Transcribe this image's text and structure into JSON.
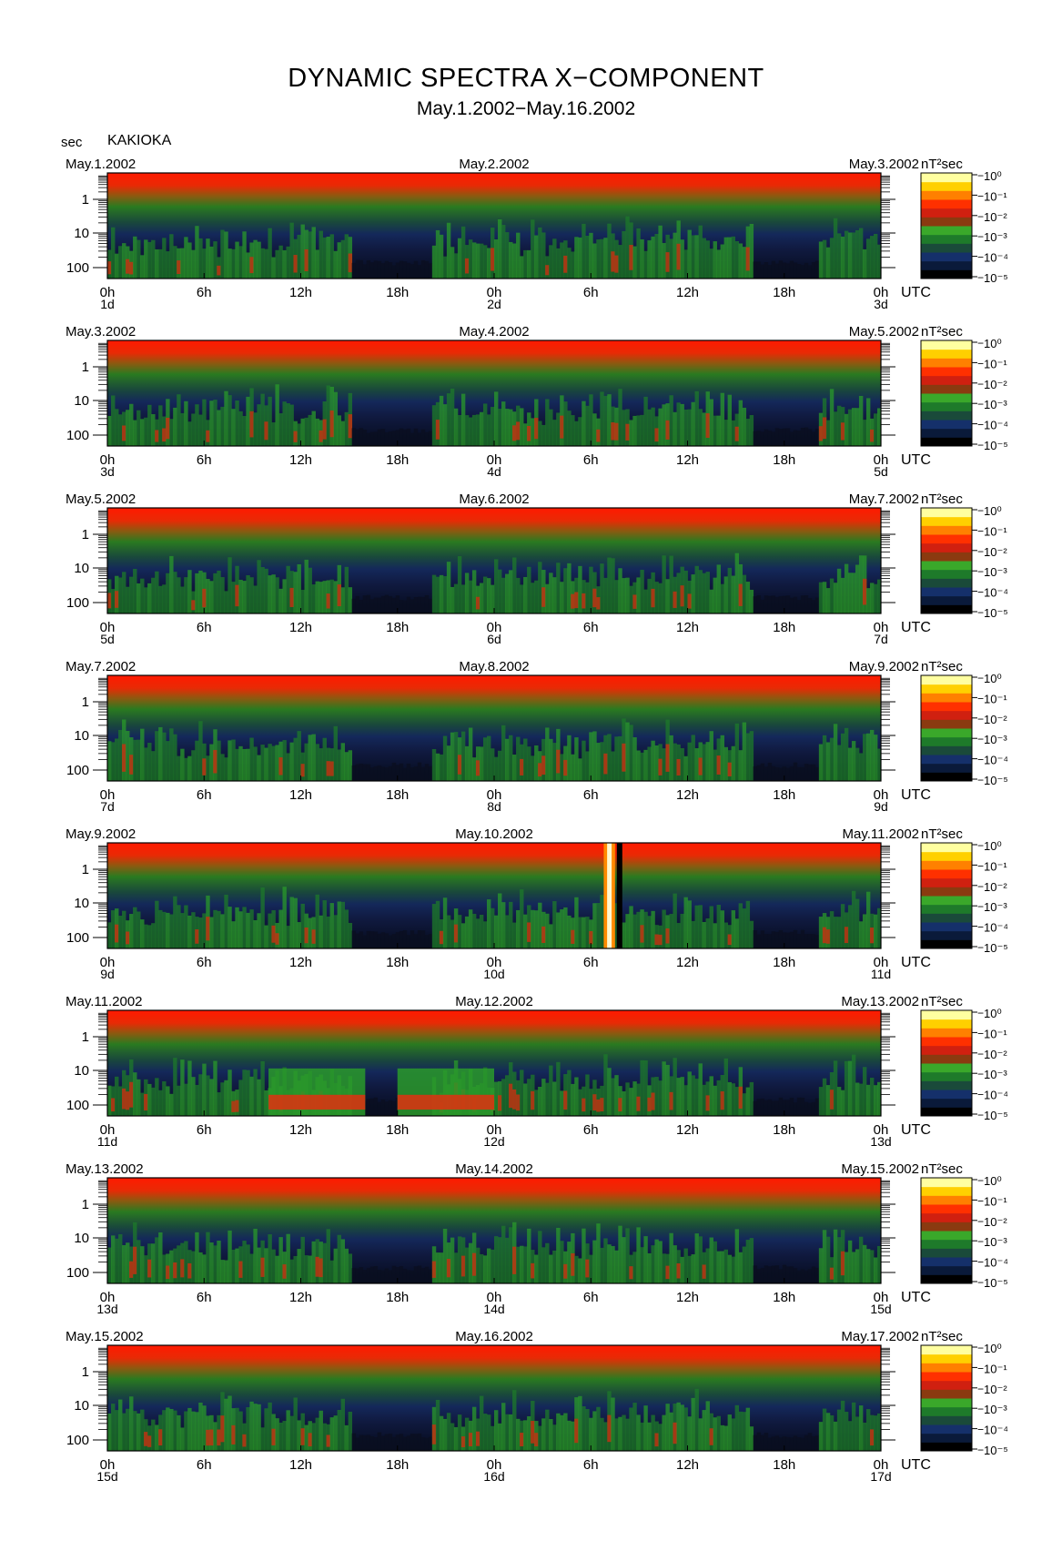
{
  "title": "DYNAMIC SPECTRA X−COMPONENT",
  "subtitle": "May.1.2002−May.16.2002",
  "y_unit": "sec",
  "station": "KAKIOKA",
  "chart_data": {
    "type": "heatmap",
    "y_ticks": [
      "1",
      "10",
      "100"
    ],
    "x_ticks": [
      "0h",
      "6h",
      "12h",
      "18h",
      "0h",
      "6h",
      "12h",
      "18h",
      "0h"
    ],
    "x_unit": "UTC",
    "colorbar_unit": "nT²sec",
    "colorbar_ticks": [
      "10⁰",
      "10⁻¹",
      "10⁻²",
      "10⁻³",
      "10⁻⁴",
      "10⁻⁵"
    ],
    "colormap": [
      "#000000",
      "#0a1a3a",
      "#15306a",
      "#1a4a3a",
      "#1e7a2a",
      "#3aa82a",
      "#8a3a10",
      "#d02010",
      "#ff3000",
      "#ff8000",
      "#ffd000",
      "#ffffa0"
    ],
    "panels": [
      {
        "start": "May.1.2002",
        "mid": "May.2.2002",
        "end": "May.3.2002",
        "day_labels": [
          "1d",
          "2d",
          "3d"
        ],
        "seed": 11
      },
      {
        "start": "May.3.2002",
        "mid": "May.4.2002",
        "end": "May.5.2002",
        "day_labels": [
          "3d",
          "4d",
          "5d"
        ],
        "seed": 23
      },
      {
        "start": "May.5.2002",
        "mid": "May.6.2002",
        "end": "May.7.2002",
        "day_labels": [
          "5d",
          "6d",
          "7d"
        ],
        "seed": 37
      },
      {
        "start": "May.7.2002",
        "mid": "May.8.2002",
        "end": "May.9.2002",
        "day_labels": [
          "7d",
          "8d",
          "9d"
        ],
        "seed": 41
      },
      {
        "start": "May.9.2002",
        "mid": "May.10.2002",
        "end": "May.11.2002",
        "day_labels": [
          "9d",
          "10d",
          "11d"
        ],
        "seed": 53,
        "spike_hours": [
          30.8,
          31.5
        ]
      },
      {
        "start": "May.11.2002",
        "mid": "May.12.2002",
        "end": "May.13.2002",
        "day_labels": [
          "11d",
          "12d",
          "13d"
        ],
        "seed": 67,
        "strong_hours": [
          10,
          16,
          18,
          24
        ]
      },
      {
        "start": "May.13.2002",
        "mid": "May.14.2002",
        "end": "May.15.2002",
        "day_labels": [
          "13d",
          "14d",
          "15d"
        ],
        "seed": 71
      },
      {
        "start": "May.15.2002",
        "mid": "May.16.2002",
        "end": "May.17.2002",
        "day_labels": [
          "15d",
          "16d",
          "17d"
        ],
        "seed": 83
      }
    ]
  }
}
